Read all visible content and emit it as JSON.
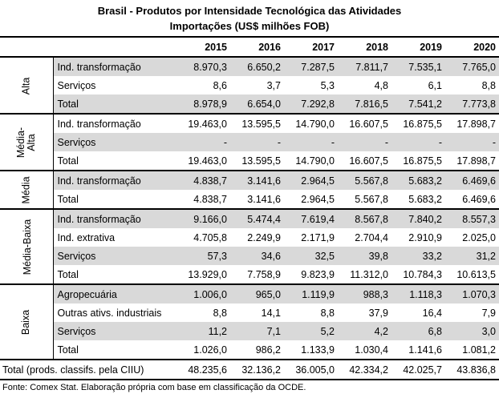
{
  "title_line1": "Brasil - Produtos por Intensidade Tecnológica das Atividades",
  "title_line2": "Importações (US$ milhões FOB)",
  "years": [
    "2015",
    "2016",
    "2017",
    "2018",
    "2019",
    "2020"
  ],
  "groups": [
    {
      "name": "Alta",
      "rows": [
        {
          "label": "Ind. transformação",
          "values": [
            "8.970,3",
            "6.650,2",
            "7.287,5",
            "7.811,7",
            "7.535,1",
            "7.765,0"
          ],
          "shaded": true
        },
        {
          "label": "Serviços",
          "values": [
            "8,6",
            "3,7",
            "5,3",
            "4,8",
            "6,1",
            "8,8"
          ],
          "shaded": false
        },
        {
          "label": "Total",
          "values": [
            "8.978,9",
            "6.654,0",
            "7.292,8",
            "7.816,5",
            "7.541,2",
            "7.773,8"
          ],
          "shaded": true
        }
      ]
    },
    {
      "name": "Média-Alta",
      "rows": [
        {
          "label": "Ind. transformação",
          "values": [
            "19.463,0",
            "13.595,5",
            "14.790,0",
            "16.607,5",
            "16.875,5",
            "17.898,7"
          ],
          "shaded": false
        },
        {
          "label": "Serviços",
          "values": [
            "-",
            "-",
            "-",
            "-",
            "-",
            "-"
          ],
          "shaded": true
        },
        {
          "label": "Total",
          "values": [
            "19.463,0",
            "13.595,5",
            "14.790,0",
            "16.607,5",
            "16.875,5",
            "17.898,7"
          ],
          "shaded": false
        }
      ]
    },
    {
      "name": "Média",
      "rows": [
        {
          "label": "Ind. transformação",
          "values": [
            "4.838,7",
            "3.141,6",
            "2.964,5",
            "5.567,8",
            "5.683,2",
            "6.469,6"
          ],
          "shaded": true
        },
        {
          "label": "Total",
          "values": [
            "4.838,7",
            "3.141,6",
            "2.964,5",
            "5.567,8",
            "5.683,2",
            "6.469,6"
          ],
          "shaded": false
        }
      ]
    },
    {
      "name": "Média-Baixa",
      "rows": [
        {
          "label": "Ind. transformação",
          "values": [
            "9.166,0",
            "5.474,4",
            "7.619,4",
            "8.567,8",
            "7.840,2",
            "8.557,3"
          ],
          "shaded": true
        },
        {
          "label": "Ind. extrativa",
          "values": [
            "4.705,8",
            "2.249,9",
            "2.171,9",
            "2.704,4",
            "2.910,9",
            "2.025,0"
          ],
          "shaded": false
        },
        {
          "label": "Serviços",
          "values": [
            "57,3",
            "34,6",
            "32,5",
            "39,8",
            "33,2",
            "31,2"
          ],
          "shaded": true
        },
        {
          "label": "Total",
          "values": [
            "13.929,0",
            "7.758,9",
            "9.823,9",
            "11.312,0",
            "10.784,3",
            "10.613,5"
          ],
          "shaded": false
        }
      ]
    },
    {
      "name": "Baixa",
      "rows": [
        {
          "label": "Agropecuária",
          "values": [
            "1.006,0",
            "965,0",
            "1.119,9",
            "988,3",
            "1.118,3",
            "1.070,3"
          ],
          "shaded": true
        },
        {
          "label": "Outras ativs. industriais",
          "values": [
            "8,8",
            "14,1",
            "8,8",
            "37,9",
            "16,4",
            "7,9"
          ],
          "shaded": false
        },
        {
          "label": "Serviços",
          "values": [
            "11,2",
            "7,1",
            "5,2",
            "4,2",
            "6,8",
            "3,0"
          ],
          "shaded": true
        },
        {
          "label": "Total",
          "values": [
            "1.026,0",
            "986,2",
            "1.133,9",
            "1.030,4",
            "1.141,6",
            "1.081,2"
          ],
          "shaded": false
        }
      ]
    }
  ],
  "grand_total": {
    "label": "Total (prods. classifs. pela CIIU)",
    "values": [
      "48.235,6",
      "32.136,2",
      "36.005,0",
      "42.334,2",
      "42.025,7",
      "43.836,8"
    ]
  },
  "footer": "Fonte: Comex Stat. Elaboração própria com base em classificação da OCDE."
}
